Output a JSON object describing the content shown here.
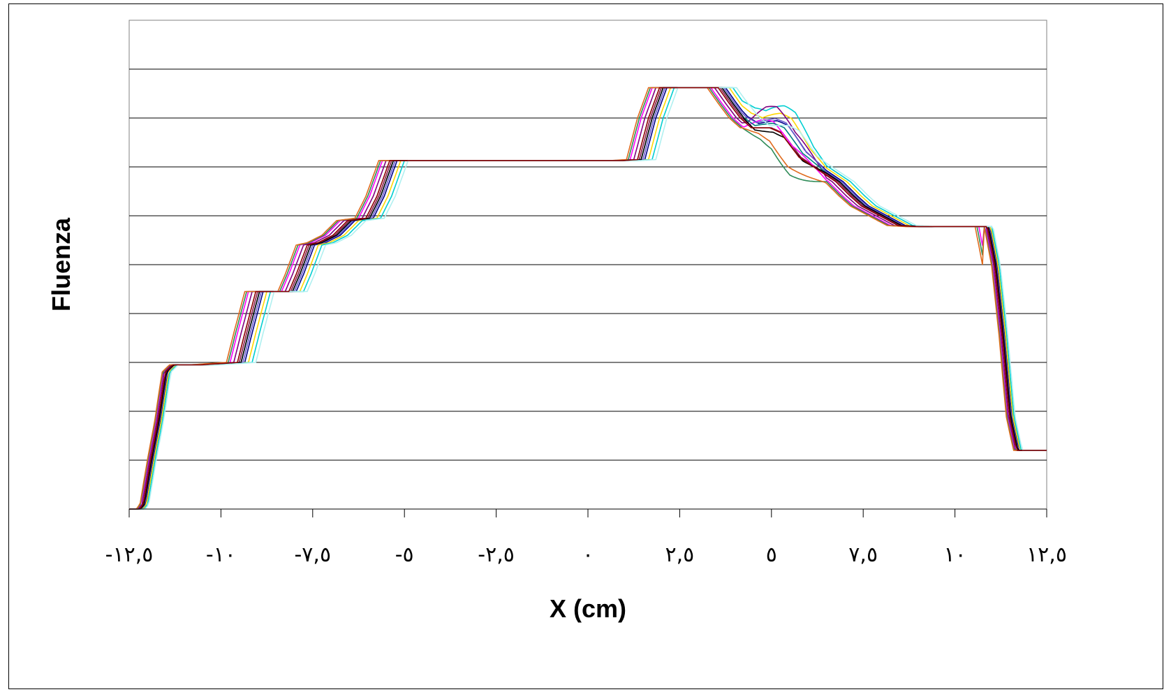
{
  "chart_data": {
    "type": "line",
    "xlabel": "X (cm)",
    "ylabel": "Fluenza",
    "xlim": [
      -12.5,
      12.5
    ],
    "ylim": [
      0,
      1
    ],
    "x_ticks": [
      -12.5,
      -10,
      -7.5,
      -5,
      -2.5,
      0,
      2.5,
      5,
      7.5,
      10,
      12.5
    ],
    "x_tick_labels": [
      "-۱۲,٥",
      "-۱۰",
      "-۷,٥",
      "-٥",
      "-۲,٥",
      "۰",
      "۲,٥",
      "٥",
      "۷,٥",
      "۱۰",
      "۱۲,٥"
    ],
    "y_gridlines": [
      0.1,
      0.2,
      0.3,
      0.4,
      0.5,
      0.6,
      0.7,
      0.8,
      0.9
    ],
    "y_tick_labels_shown": false,
    "grid": "horizontal",
    "legend": "none",
    "base_profile": [
      [
        -12.5,
        0.0
      ],
      [
        -12.2,
        0.0
      ],
      [
        -12.1,
        0.01
      ],
      [
        -11.9,
        0.1
      ],
      [
        -11.7,
        0.18
      ],
      [
        -11.5,
        0.28
      ],
      [
        -11.3,
        0.295
      ],
      [
        -10.5,
        0.295
      ],
      [
        -9.5,
        0.3
      ],
      [
        -9.3,
        0.36
      ],
      [
        -9.0,
        0.445
      ],
      [
        -8.6,
        0.445
      ],
      [
        -8.1,
        0.445
      ],
      [
        -7.9,
        0.48
      ],
      [
        -7.6,
        0.54
      ],
      [
        -7.3,
        0.545
      ],
      [
        -6.9,
        0.56
      ],
      [
        -6.5,
        0.59
      ],
      [
        -6.0,
        0.595
      ],
      [
        -5.7,
        0.64
      ],
      [
        -5.35,
        0.713
      ],
      [
        -5.0,
        0.713
      ],
      [
        -2.5,
        0.713
      ],
      [
        0.0,
        0.713
      ],
      [
        1.0,
        0.713
      ],
      [
        1.4,
        0.715
      ],
      [
        1.7,
        0.8
      ],
      [
        2.0,
        0.862
      ],
      [
        3.0,
        0.862
      ],
      [
        3.6,
        0.862
      ],
      [
        3.9,
        0.83
      ],
      [
        4.2,
        0.8
      ],
      [
        4.5,
        0.78
      ],
      [
        5.0,
        0.78
      ],
      [
        5.3,
        0.77
      ],
      [
        5.8,
        0.72
      ],
      [
        6.2,
        0.7
      ],
      [
        6.8,
        0.67
      ],
      [
        7.2,
        0.64
      ],
      [
        7.5,
        0.62
      ],
      [
        8.0,
        0.6
      ],
      [
        8.5,
        0.58
      ],
      [
        9.0,
        0.578
      ],
      [
        10.0,
        0.578
      ],
      [
        10.9,
        0.578
      ],
      [
        11.1,
        0.5
      ],
      [
        11.3,
        0.36
      ],
      [
        11.5,
        0.19
      ],
      [
        11.7,
        0.12
      ],
      [
        12.5,
        0.12
      ]
    ],
    "series": [
      {
        "color": "#8B1A4A",
        "x_offset": 0.0,
        "y_wobble": 0.0
      },
      {
        "color": "#00008B",
        "x_offset": 0.15,
        "y_wobble": 0.006
      },
      {
        "color": "#FF00FF",
        "x_offset": -0.25,
        "y_wobble": 0.01
      },
      {
        "color": "#FFD700",
        "x_offset": 0.25,
        "y_wobble": 0.012
      },
      {
        "color": "#00CED1",
        "x_offset": 0.35,
        "y_wobble": 0.018
      },
      {
        "color": "#800080",
        "x_offset": -0.15,
        "y_wobble": 0.022
      },
      {
        "color": "#2E8B57",
        "x_offset": -0.3,
        "y_wobble": -0.015
      },
      {
        "color": "#E06A1C",
        "x_offset": -0.35,
        "y_wobble": -0.008
      },
      {
        "color": "#008080",
        "x_offset": 0.05,
        "y_wobble": 0.004
      },
      {
        "color": "#6A5ACD",
        "x_offset": 0.1,
        "y_wobble": 0.008
      },
      {
        "color": "#000000",
        "x_offset": 0.05,
        "y_wobble": -0.004
      },
      {
        "color": "#B0F0F0",
        "x_offset": 0.45,
        "y_wobble": 0.002
      },
      {
        "color": "#8B0000",
        "x_offset": -0.05,
        "y_wobble": 0.0
      }
    ]
  }
}
